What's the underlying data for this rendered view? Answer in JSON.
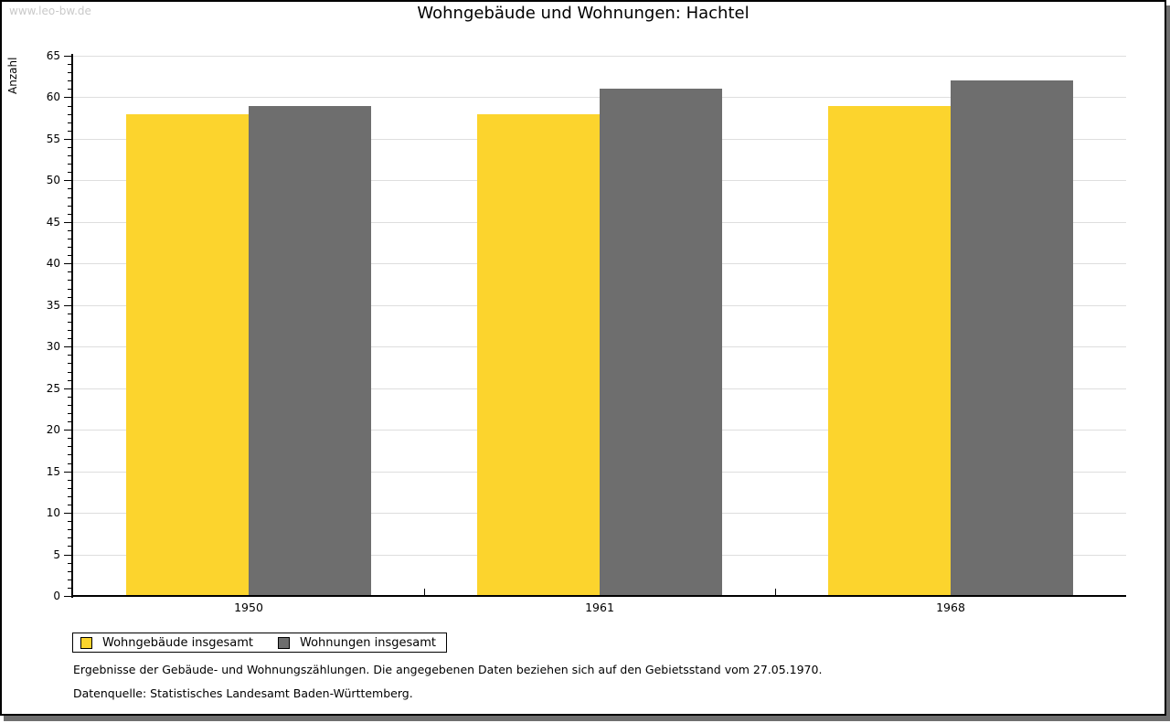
{
  "watermark": "www.leo-bw.de",
  "title": "Wohngebäude und Wohnungen: Hachtel",
  "chart_data": {
    "type": "bar",
    "title": "Wohngebäude und Wohnungen: Hachtel",
    "categories": [
      "1950",
      "1961",
      "1968"
    ],
    "series": [
      {
        "name": "Wohngebäude insgesamt",
        "color": "#fcd42d",
        "values": [
          58,
          58,
          59
        ]
      },
      {
        "name": "Wohnungen insgesamt",
        "color": "#6e6e6e",
        "values": [
          59,
          61,
          62
        ]
      }
    ],
    "xlabel": "",
    "ylabel": "Anzahl",
    "ylim": [
      0,
      65
    ],
    "ytick_step": 5,
    "yminor_step": 1,
    "grid": true,
    "gridline_color": "#dedede",
    "legend_position": "bottom-left"
  },
  "footer": {
    "line1": "Ergebnisse der Gebäude- und Wohnungszählungen. Die angegebenen Daten beziehen sich auf den Gebietsstand vom 27.05.1970.",
    "line2": "Datenquelle: Statistisches Landesamt Baden-Württemberg."
  }
}
